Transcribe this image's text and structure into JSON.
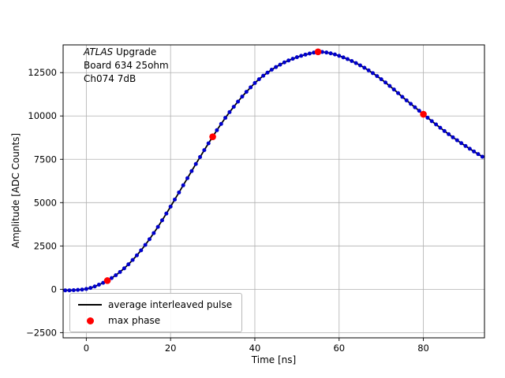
{
  "figure": {
    "background": "#ffffff",
    "annotation": {
      "line1_italic": "ATLAS",
      "line1_rest": " Upgrade",
      "line2": "Board 634 25ohm",
      "line3": "Ch074 7dB"
    },
    "legend": [
      {
        "marker": "line",
        "color": "#000000",
        "label": "average interleaved pulse"
      },
      {
        "marker": "dot",
        "color": "#ff0000",
        "label": "max phase"
      }
    ]
  },
  "chart_data": {
    "type": "line",
    "title": "",
    "xlabel": "Time [ns]",
    "ylabel": "Amplitude [ADC Counts]",
    "xlim": [
      -5.5,
      94.5
    ],
    "ylim": [
      -2800,
      14100
    ],
    "xticks": [
      0,
      20,
      40,
      60,
      80
    ],
    "yticks": [
      -2500,
      0,
      2500,
      5000,
      7500,
      10000,
      12500
    ],
    "grid": true,
    "grid_color": "#b0b0b0",
    "frame_color": "#000000",
    "series": [
      {
        "name": "average interleaved pulse",
        "line_color": "#000000",
        "marker_color": "#0000cc",
        "x": [
          -5,
          -4,
          -3,
          -2,
          -1,
          0,
          1,
          2,
          3,
          4,
          5,
          6,
          7,
          8,
          9,
          10,
          11,
          12,
          13,
          14,
          15,
          16,
          17,
          18,
          19,
          20,
          21,
          22,
          23,
          24,
          25,
          26,
          27,
          28,
          29,
          30,
          31,
          32,
          33,
          34,
          35,
          36,
          37,
          38,
          39,
          40,
          41,
          42,
          43,
          44,
          45,
          46,
          47,
          48,
          49,
          50,
          51,
          52,
          53,
          54,
          55,
          56,
          57,
          58,
          59,
          60,
          61,
          62,
          63,
          64,
          65,
          66,
          67,
          68,
          69,
          70,
          71,
          72,
          73,
          74,
          75,
          76,
          77,
          78,
          79,
          80,
          81,
          82,
          83,
          84,
          85,
          86,
          87,
          88,
          89,
          90,
          91,
          92,
          93,
          94
        ],
        "y": [
          -60,
          -60,
          -50,
          -35,
          -15,
          20,
          80,
          165,
          265,
          375,
          500,
          645,
          810,
          1000,
          1210,
          1440,
          1690,
          1960,
          2250,
          2560,
          2890,
          3240,
          3600,
          3980,
          4370,
          4770,
          5180,
          5590,
          6000,
          6410,
          6820,
          7230,
          7630,
          8030,
          8420,
          8800,
          9180,
          9540,
          9890,
          10220,
          10530,
          10830,
          11120,
          11390,
          11650,
          11900,
          12120,
          12320,
          12500,
          12670,
          12820,
          12960,
          13090,
          13200,
          13300,
          13390,
          13470,
          13540,
          13600,
          13655,
          13700,
          13690,
          13660,
          13610,
          13550,
          13470,
          13380,
          13280,
          13170,
          13050,
          12920,
          12780,
          12630,
          12470,
          12300,
          12120,
          11930,
          11730,
          11530,
          11320,
          11100,
          10900,
          10700,
          10500,
          10300,
          10100,
          9900,
          9700,
          9510,
          9320,
          9130,
          8950,
          8770,
          8600,
          8430,
          8270,
          8110,
          7950,
          7800,
          7650
        ]
      },
      {
        "name": "max phase",
        "marker_color": "#ff0000",
        "x": [
          5,
          30,
          55,
          80
        ],
        "y": [
          500,
          8800,
          13700,
          10100
        ]
      }
    ]
  }
}
